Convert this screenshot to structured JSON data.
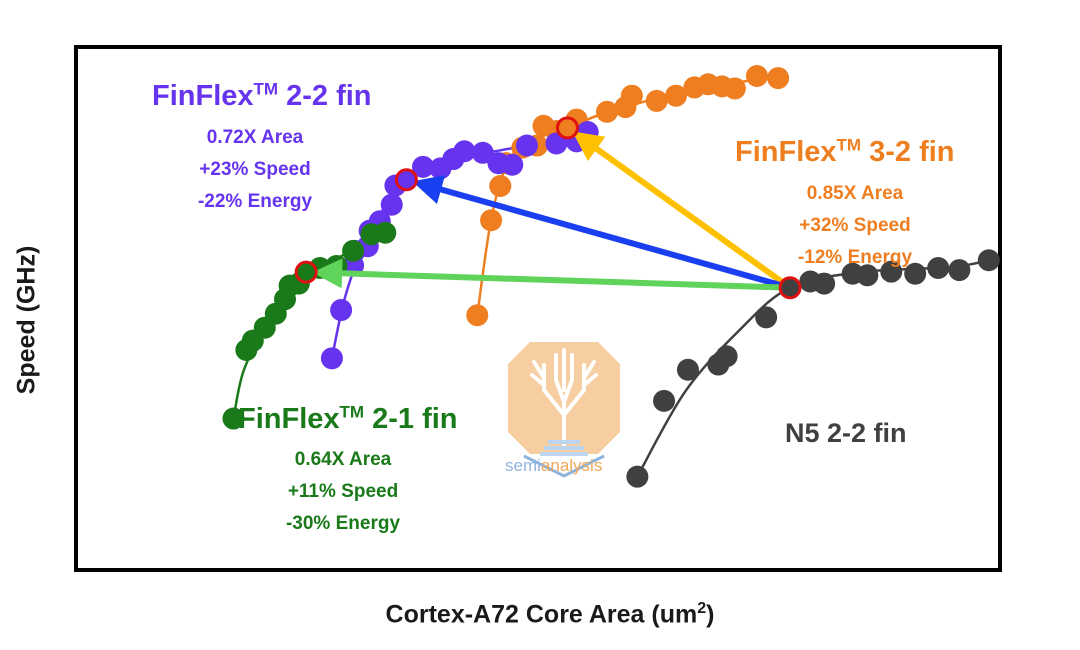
{
  "chart_data": {
    "type": "scatter",
    "xlabel": "Cortex-A72 Core Area (um",
    "xlabel_sup": "2",
    "xlabel_suffix": ")",
    "ylabel": "Speed (GHz)",
    "xlim": [
      0,
      100
    ],
    "ylim": [
      0,
      100
    ],
    "grid": false,
    "series": [
      {
        "name": "N5 2-2 fin",
        "color": "#404040",
        "label": "N5 2-2 fin",
        "stats": [],
        "reference_point": {
          "x": 77.4,
          "y": 54.0
        },
        "points": [
          [
            60.8,
            17.6
          ],
          [
            63.7,
            32.2
          ],
          [
            66.3,
            38.2
          ],
          [
            69.6,
            39.2
          ],
          [
            70.5,
            40.8
          ],
          [
            74.8,
            48.3
          ],
          [
            77.4,
            54.0
          ],
          [
            79.6,
            55.2
          ],
          [
            81.1,
            54.8
          ],
          [
            84.2,
            56.7
          ],
          [
            85.8,
            56.4
          ],
          [
            88.4,
            57.1
          ],
          [
            91.0,
            56.7
          ],
          [
            93.5,
            57.8
          ],
          [
            95.8,
            57.4
          ],
          [
            99.0,
            59.3
          ]
        ],
        "trend": [
          [
            60.8,
            17.6
          ],
          [
            66.0,
            34.0
          ],
          [
            72.0,
            46.0
          ],
          [
            77.4,
            54.0
          ],
          [
            85.0,
            57.0
          ],
          [
            95.0,
            58.0
          ],
          [
            99.0,
            59.3
          ]
        ]
      },
      {
        "name": "FinFlex 3-2 fin",
        "color": "#ee7e1f",
        "title_main": "FinFlex",
        "title_sup": "TM",
        "title_suffix": " 3-2 fin",
        "stats": [
          "0.85X Area",
          "+32% Speed",
          "-12% Energy"
        ],
        "reference_point": {
          "x": 53.2,
          "y": 84.8
        },
        "points": [
          [
            43.4,
            48.7
          ],
          [
            44.9,
            67.0
          ],
          [
            45.9,
            73.6
          ],
          [
            46.5,
            78.0
          ],
          [
            48.3,
            81.0
          ],
          [
            49.9,
            81.4
          ],
          [
            50.6,
            85.2
          ],
          [
            52.0,
            84.2
          ],
          [
            53.2,
            84.8
          ],
          [
            54.2,
            86.4
          ],
          [
            57.5,
            87.9
          ],
          [
            59.5,
            88.8
          ],
          [
            60.2,
            91.0
          ],
          [
            62.9,
            90.0
          ],
          [
            65.0,
            91.0
          ],
          [
            67.0,
            92.6
          ],
          [
            68.5,
            93.2
          ],
          [
            70.0,
            92.8
          ],
          [
            71.4,
            92.4
          ],
          [
            73.8,
            94.8
          ],
          [
            76.1,
            94.4
          ]
        ],
        "trend": [
          [
            43.4,
            48.7
          ],
          [
            45.0,
            68.0
          ],
          [
            47.0,
            79.0
          ],
          [
            50.0,
            83.0
          ],
          [
            53.2,
            84.8
          ],
          [
            57.0,
            87.5
          ],
          [
            63.0,
            90.5
          ],
          [
            70.0,
            93.0
          ],
          [
            76.1,
            94.8
          ]
        ]
      },
      {
        "name": "FinFlex 2-2 fin",
        "color": "#6633ee",
        "title_main": "FinFlex",
        "title_sup": "TM",
        "title_suffix": " 2-2 fin",
        "stats": [
          "0.72X Area",
          "+23% Speed",
          "-22% Energy"
        ],
        "reference_point": {
          "x": 35.7,
          "y": 74.8
        },
        "points": [
          [
            27.6,
            40.4
          ],
          [
            28.6,
            49.7
          ],
          [
            29.9,
            58.3
          ],
          [
            30.1,
            61.1
          ],
          [
            31.5,
            62.0
          ],
          [
            31.7,
            65.0
          ],
          [
            32.8,
            66.8
          ],
          [
            34.1,
            70.0
          ],
          [
            34.5,
            73.7
          ],
          [
            35.7,
            74.8
          ],
          [
            37.5,
            77.3
          ],
          [
            39.4,
            77.0
          ],
          [
            40.8,
            78.8
          ],
          [
            42.0,
            80.3
          ],
          [
            44.0,
            80.0
          ],
          [
            45.7,
            78.0
          ],
          [
            47.2,
            77.7
          ],
          [
            48.8,
            81.4
          ],
          [
            52.0,
            81.8
          ],
          [
            54.2,
            82.2
          ],
          [
            55.4,
            84.0
          ]
        ],
        "trend": [
          [
            27.6,
            40.4
          ],
          [
            29.0,
            52.0
          ],
          [
            31.0,
            62.0
          ],
          [
            33.5,
            70.0
          ],
          [
            35.7,
            74.8
          ],
          [
            40.0,
            78.5
          ],
          [
            46.0,
            80.5
          ],
          [
            52.0,
            82.5
          ],
          [
            55.4,
            84.5
          ]
        ]
      },
      {
        "name": "FinFlex 2-1 fin",
        "color": "#1a7a1a",
        "title_main": "FinFlex",
        "title_sup": "TM",
        "title_suffix": " 2-1 fin",
        "stats": [
          "0.64X Area",
          "+11% Speed",
          "-30% Energy"
        ],
        "reference_point": {
          "x": 24.8,
          "y": 57.0
        },
        "points": [
          [
            16.9,
            28.8
          ],
          [
            18.3,
            42.0
          ],
          [
            19.0,
            43.8
          ],
          [
            20.3,
            46.3
          ],
          [
            21.5,
            49.0
          ],
          [
            22.5,
            51.8
          ],
          [
            23.0,
            54.4
          ],
          [
            24.0,
            54.8
          ],
          [
            24.8,
            57.0
          ],
          [
            26.3,
            57.8
          ],
          [
            28.1,
            58.2
          ],
          [
            29.9,
            61.1
          ],
          [
            31.9,
            64.3
          ],
          [
            33.4,
            64.6
          ]
        ],
        "trend": [
          [
            16.9,
            28.8
          ],
          [
            18.0,
            38.0
          ],
          [
            20.5,
            47.0
          ],
          [
            22.8,
            53.0
          ],
          [
            24.8,
            57.0
          ],
          [
            28.0,
            59.5
          ],
          [
            31.0,
            62.5
          ],
          [
            33.4,
            64.6
          ]
        ]
      }
    ],
    "arrows": [
      {
        "from": "N5 2-2 fin",
        "to": "FinFlex 3-2 fin",
        "color": "#ffc000"
      },
      {
        "from": "N5 2-2 fin",
        "to": "FinFlex 2-2 fin",
        "color": "#1a3ff0"
      },
      {
        "from": "N5 2-2 fin",
        "to": "FinFlex 2-1 fin",
        "color": "#5fd35a"
      }
    ]
  },
  "watermark": {
    "text_main": "semi",
    "text_accent": "analysis",
    "icon": "tree-octagon-logo-icon"
  }
}
